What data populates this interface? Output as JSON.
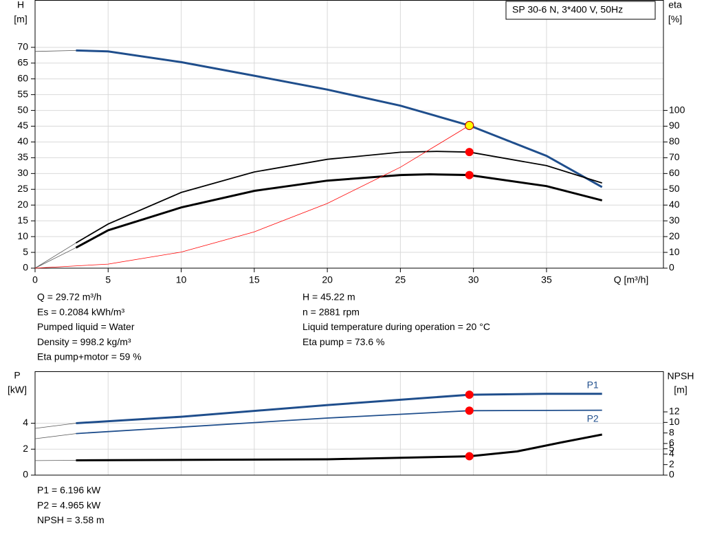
{
  "chart_data": [
    {
      "type": "line",
      "title": "SP 30-6 N, 3*400 V, 50Hz",
      "xlabel": "Q [m³/h]",
      "ylabel": "H",
      "yunit": "[m]",
      "y2label": "eta",
      "y2unit": "[%]",
      "xlim": [
        0,
        43
      ],
      "xticks": [
        0,
        5,
        10,
        15,
        20,
        25,
        30,
        35
      ],
      "ylim": [
        0,
        85
      ],
      "yticks": [
        0,
        5,
        10,
        15,
        20,
        25,
        30,
        35,
        40,
        45,
        50,
        55,
        60,
        65,
        70
      ],
      "y2lim": [
        0,
        170
      ],
      "y2ticks": [
        0,
        10,
        20,
        30,
        40,
        50,
        60,
        70,
        80,
        90,
        100
      ],
      "grid": true,
      "series": [
        {
          "color": "#555555",
          "linewidth": 0.8,
          "x": [
            0,
            2.8
          ],
          "values": [
            68.7,
            69
          ]
        },
        {
          "color": "#1f4e8c",
          "linewidth": 3,
          "x": [
            2.8,
            5,
            10,
            15,
            20,
            25,
            29.72,
            35,
            38.8
          ],
          "values": [
            69,
            68.7,
            65.3,
            61,
            56.6,
            51.5,
            45.22,
            35.6,
            25.7
          ]
        },
        {
          "color": "#555555",
          "linewidth": 0.8,
          "axis": "y2",
          "x": [
            0,
            2.8
          ],
          "values": [
            0,
            16
          ]
        },
        {
          "color": "#000000",
          "linewidth": 1.8,
          "axis": "y2",
          "x": [
            2.8,
            5,
            10,
            15,
            20,
            25,
            27.5,
            29.72,
            35,
            38.8
          ],
          "values": [
            16,
            28,
            48,
            61,
            69,
            73.5,
            74,
            73.6,
            65,
            54
          ]
        },
        {
          "color": "#555555",
          "linewidth": 0.8,
          "axis": "y2",
          "x": [
            0,
            2.8
          ],
          "values": [
            0,
            13
          ]
        },
        {
          "color": "#000000",
          "linewidth": 3,
          "axis": "y2",
          "x": [
            2.8,
            5,
            10,
            15,
            20,
            25,
            27,
            29.72,
            35,
            38.8
          ],
          "values": [
            13,
            24,
            38.5,
            49,
            55.5,
            59,
            59.5,
            59,
            52,
            43
          ]
        },
        {
          "color": "#ff0000",
          "linewidth": 0.8,
          "x": [
            0,
            5,
            10,
            15,
            20,
            25,
            29.72
          ],
          "values": [
            0,
            1.28,
            5.1,
            11.5,
            20.5,
            32,
            45.22
          ]
        }
      ],
      "markers": [
        {
          "x": 29.72,
          "y": 45.22,
          "color": "#ffff00"
        },
        {
          "x": 29.72,
          "y": 73.6,
          "axis": "y2",
          "color": "#ff0000"
        },
        {
          "x": 29.72,
          "y": 59,
          "axis": "y2",
          "color": "#ff0000"
        }
      ],
      "info_left": [
        "Q = 29.72 m³/h",
        "Es = 0.2084 kWh/m³",
        "Pumped liquid = Water",
        "Density = 998.2 kg/m³",
        "Eta pump+motor = 59 %"
      ],
      "info_right": [
        "H = 45.22 m",
        "n = 2881 rpm",
        "Liquid temperature during operation = 20 °C",
        "Eta pump = 73.6 %"
      ]
    },
    {
      "type": "line",
      "ylabel": "P",
      "yunit": "[kW]",
      "y2label": "NPSH",
      "y2unit": "[m]",
      "xlim": [
        0,
        43
      ],
      "xticks": [
        0,
        5,
        10,
        15,
        20,
        25,
        30,
        35
      ],
      "ylim": [
        0,
        8
      ],
      "yticks": [
        0,
        2,
        4
      ],
      "y2lim": [
        0,
        19.7
      ],
      "y2ticks": [
        0,
        2,
        4,
        5,
        6,
        8,
        10,
        12
      ],
      "grid": true,
      "series": [
        {
          "color": "#555555",
          "linewidth": 0.8,
          "x": [
            0,
            2.8
          ],
          "values": [
            3.6,
            4.0
          ]
        },
        {
          "name": "P1",
          "color": "#1f4e8c",
          "linewidth": 3,
          "x": [
            2.8,
            10,
            20,
            29.72,
            35,
            38.8
          ],
          "values": [
            4.0,
            4.5,
            5.4,
            6.196,
            6.27,
            6.27
          ]
        },
        {
          "color": "#555555",
          "linewidth": 0.8,
          "x": [
            0,
            2.8
          ],
          "values": [
            2.8,
            3.2
          ]
        },
        {
          "name": "P2",
          "color": "#1f4e8c",
          "linewidth": 1.8,
          "x": [
            2.8,
            10,
            20,
            29.72,
            38.8
          ],
          "values": [
            3.2,
            3.7,
            4.4,
            4.965,
            5.0
          ]
        },
        {
          "color": "#555555",
          "linewidth": 0.8,
          "axis": "y2",
          "x": [
            0,
            2.8
          ],
          "values": [
            2.75,
            2.8
          ]
        },
        {
          "color": "#000000",
          "linewidth": 3,
          "axis": "y2",
          "x": [
            2.8,
            20,
            29.72,
            33,
            36,
            38.8
          ],
          "values": [
            2.8,
            3.0,
            3.58,
            4.5,
            6.2,
            7.7
          ]
        }
      ],
      "markers": [
        {
          "x": 29.72,
          "y": 6.196,
          "color": "#ff0000"
        },
        {
          "x": 29.72,
          "y": 4.965,
          "color": "#ff0000"
        },
        {
          "x": 29.72,
          "y": 3.58,
          "axis": "y2",
          "color": "#ff0000"
        }
      ],
      "info_left": [
        "P1 = 6.196 kW",
        "P2 = 4.965 kW",
        "NPSH = 3.58 m"
      ]
    }
  ]
}
